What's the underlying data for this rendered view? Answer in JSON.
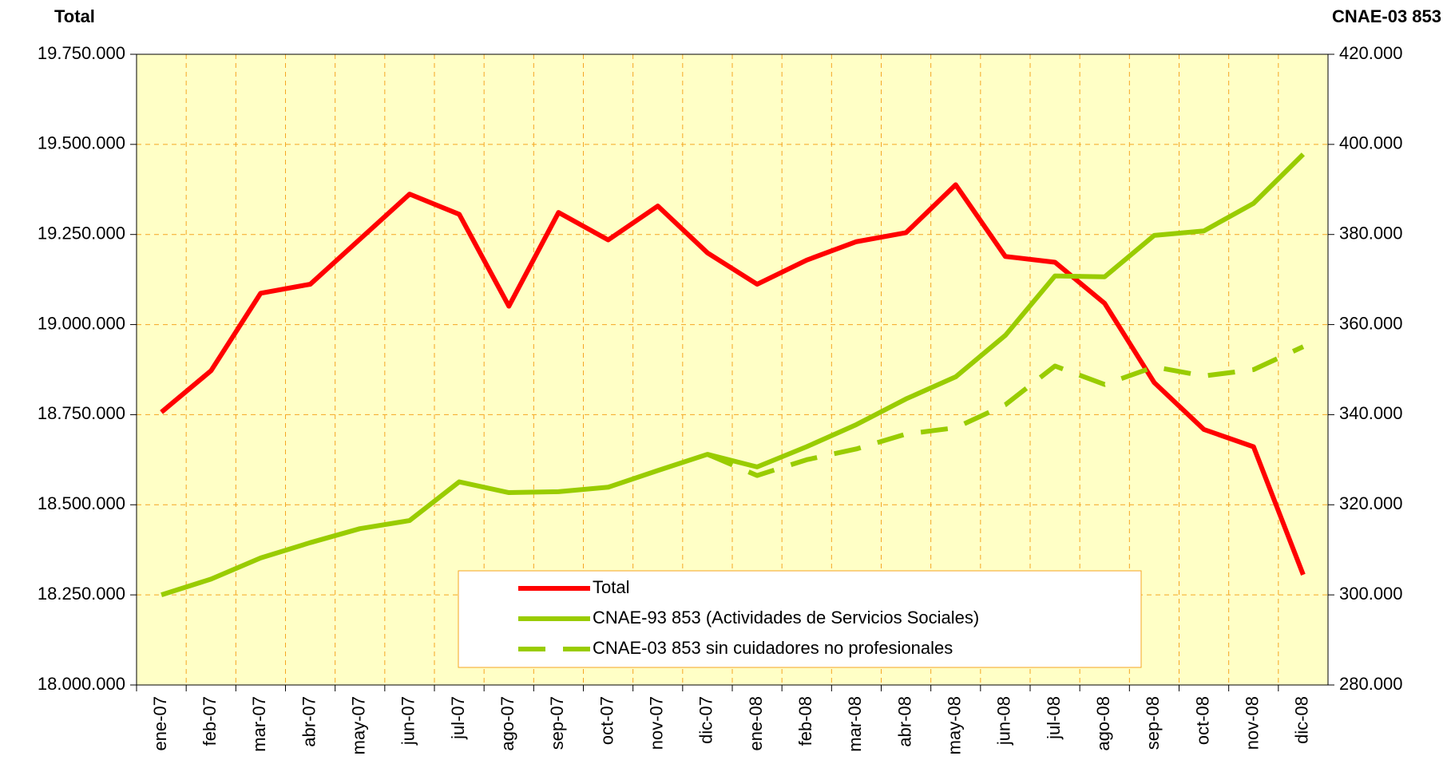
{
  "chart_data": {
    "type": "line",
    "y_axis_label": "Total",
    "y2_axis_label": "CNAE-03  853",
    "categories": [
      "ene-07",
      "feb-07",
      "mar-07",
      "abr-07",
      "may-07",
      "jun-07",
      "jul-07",
      "ago-07",
      "sep-07",
      "oct-07",
      "nov-07",
      "dic-07",
      "ene-08",
      "feb-08",
      "mar-08",
      "abr-08",
      "may-08",
      "jun-08",
      "jul-08",
      "ago-08",
      "sep-08",
      "oct-08",
      "nov-08",
      "dic-08"
    ],
    "series": [
      {
        "name": "Total",
        "color": "#ff0000",
        "dash": false,
        "values": [
          18757000,
          18872000,
          19087000,
          19112000,
          19237000,
          19362000,
          19306000,
          19051000,
          19311000,
          19235000,
          19329000,
          19199000,
          19112000,
          19179000,
          19230000,
          19255000,
          19388000,
          19189000,
          19173000,
          19059000,
          18839000,
          18709000,
          18661000,
          18306000
        ]
      },
      {
        "name": "CNAE-93  853 (Actividades de Servicios Sociales)",
        "color": "#99cc00",
        "dash": false,
        "axis": "y2",
        "values": [
          300000,
          303500,
          308200,
          311600,
          314700,
          316500,
          325100,
          322700,
          322900,
          323900,
          327600,
          331200,
          328400,
          332900,
          337800,
          343500,
          348400,
          357600,
          370800,
          370600,
          379800,
          380800,
          386900,
          397800
        ]
      },
      {
        "name": "CNAE-03  853 sin cuidadores no profesionales",
        "color": "#99cc00",
        "dash": true,
        "axis": "y2",
        "values": [
          null,
          null,
          null,
          null,
          null,
          null,
          null,
          null,
          null,
          null,
          null,
          331200,
          326500,
          330000,
          332400,
          335700,
          337100,
          342200,
          350800,
          346700,
          350600,
          348600,
          350000,
          355100
        ]
      }
    ],
    "ylim": [
      18000000,
      19750000
    ],
    "yticks": [
      {
        "value": 18000000,
        "label": "18.000.000"
      },
      {
        "value": 18250000,
        "label": "18.250.000"
      },
      {
        "value": 18500000,
        "label": "18.500.000"
      },
      {
        "value": 18750000,
        "label": "18.750.000"
      },
      {
        "value": 19000000,
        "label": "19.000.000"
      },
      {
        "value": 19250000,
        "label": "19.250.000"
      },
      {
        "value": 19500000,
        "label": "19.500.000"
      },
      {
        "value": 19750000,
        "label": "19.750.000"
      }
    ],
    "y2lim": [
      280000,
      420000
    ],
    "y2ticks": [
      {
        "value": 280000,
        "label": "280.000"
      },
      {
        "value": 300000,
        "label": "300.000"
      },
      {
        "value": 320000,
        "label": "320.000"
      },
      {
        "value": 340000,
        "label": "340.000"
      },
      {
        "value": 360000,
        "label": "360.000"
      },
      {
        "value": 380000,
        "label": "380.000"
      },
      {
        "value": 400000,
        "label": "400.000"
      },
      {
        "value": 420000,
        "label": "420.000"
      }
    ],
    "grid": true
  }
}
